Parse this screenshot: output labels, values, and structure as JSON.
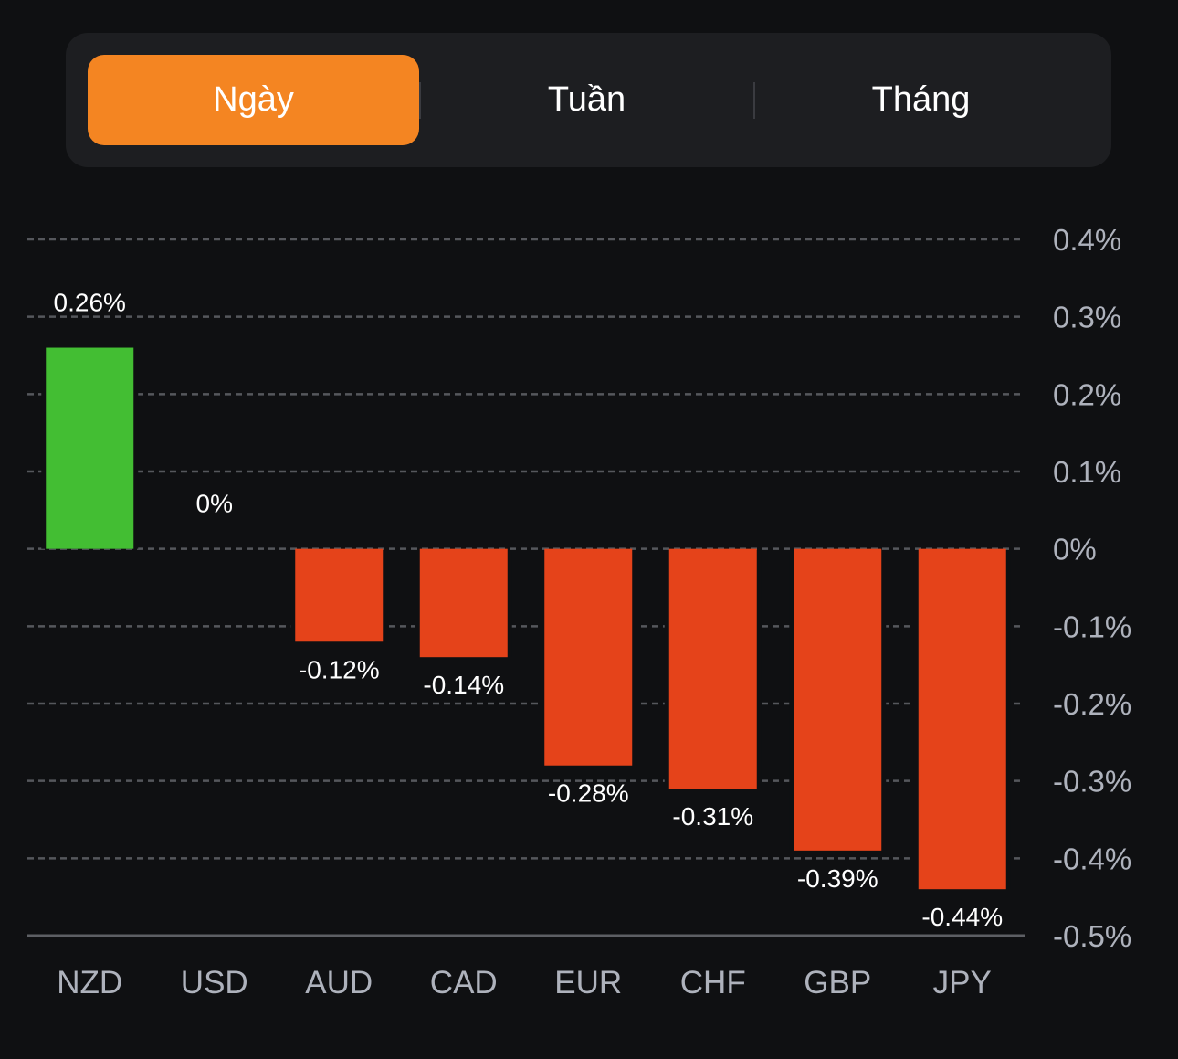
{
  "tabs": [
    {
      "label": "Ngày",
      "active": true
    },
    {
      "label": "Tuần",
      "active": false
    },
    {
      "label": "Tháng",
      "active": false
    }
  ],
  "colors": {
    "accent": "#f48522",
    "positive": "#43be33",
    "negative": "#e5431a",
    "background": "#0f1012"
  },
  "chart_data": {
    "type": "bar",
    "title": "",
    "xlabel": "",
    "ylabel": "",
    "categories": [
      "NZD",
      "USD",
      "AUD",
      "CAD",
      "EUR",
      "CHF",
      "GBP",
      "JPY"
    ],
    "values": [
      0.26,
      0,
      -0.12,
      -0.14,
      -0.28,
      -0.31,
      -0.39,
      -0.44
    ],
    "value_labels": [
      "0.26%",
      "0%",
      "-0.12%",
      "-0.14%",
      "-0.28%",
      "-0.31%",
      "-0.39%",
      "-0.44%"
    ],
    "ylim": [
      -0.5,
      0.4
    ],
    "yticks": [
      0.4,
      0.3,
      0.2,
      0.1,
      0,
      -0.1,
      -0.2,
      -0.3,
      -0.4,
      -0.5
    ],
    "ytick_labels": [
      "0.4%",
      "0.3%",
      "0.2%",
      "0.1%",
      "0%",
      "-0.1%",
      "-0.2%",
      "-0.3%",
      "-0.4%",
      "-0.5%"
    ],
    "y_axis_position": "right",
    "grid": true,
    "legend": "none"
  }
}
